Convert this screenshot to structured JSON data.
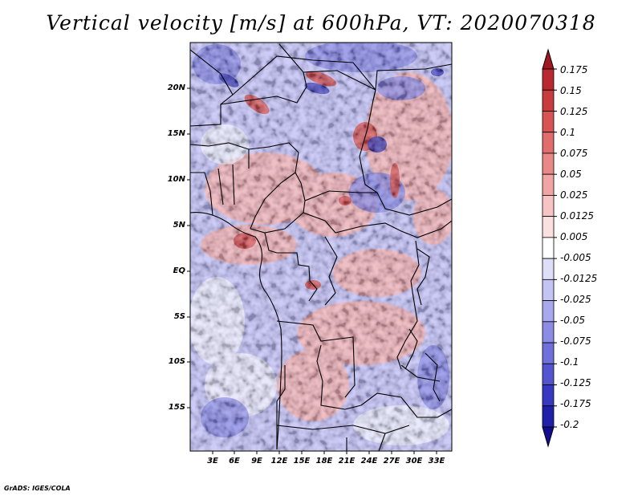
{
  "title": "Vertical velocity [m/s] at 600hPa, VT: 2020070318",
  "footer": "GrADS: IGES/COLA",
  "map": {
    "y_ticks": [
      "20N",
      "15N",
      "10N",
      "5N",
      "EQ",
      "5S",
      "10S",
      "15S"
    ],
    "x_ticks": [
      "3E",
      "6E",
      "9E",
      "12E",
      "15E",
      "18E",
      "21E",
      "24E",
      "27E",
      "30E",
      "33E"
    ]
  },
  "colorbar": {
    "labels": [
      "0.175",
      "0.15",
      "0.125",
      "0.1",
      "0.075",
      "0.05",
      "0.025",
      "0.0125",
      "0.005",
      "-0.005",
      "-0.0125",
      "-0.025",
      "-0.05",
      "-0.075",
      "-0.1",
      "-0.125",
      "-0.175",
      "-0.2"
    ],
    "colors": [
      "#a01820",
      "#b82a30",
      "#c83c40",
      "#d85454",
      "#e06c6c",
      "#e88888",
      "#f0a4a4",
      "#f6c4c4",
      "#fae0e0",
      "#ffffff",
      "#dedef8",
      "#c4c4f4",
      "#a8a8ec",
      "#8c8ce4",
      "#7070dc",
      "#5454d0",
      "#3838c0",
      "#2020a8",
      "#140c90"
    ]
  }
}
